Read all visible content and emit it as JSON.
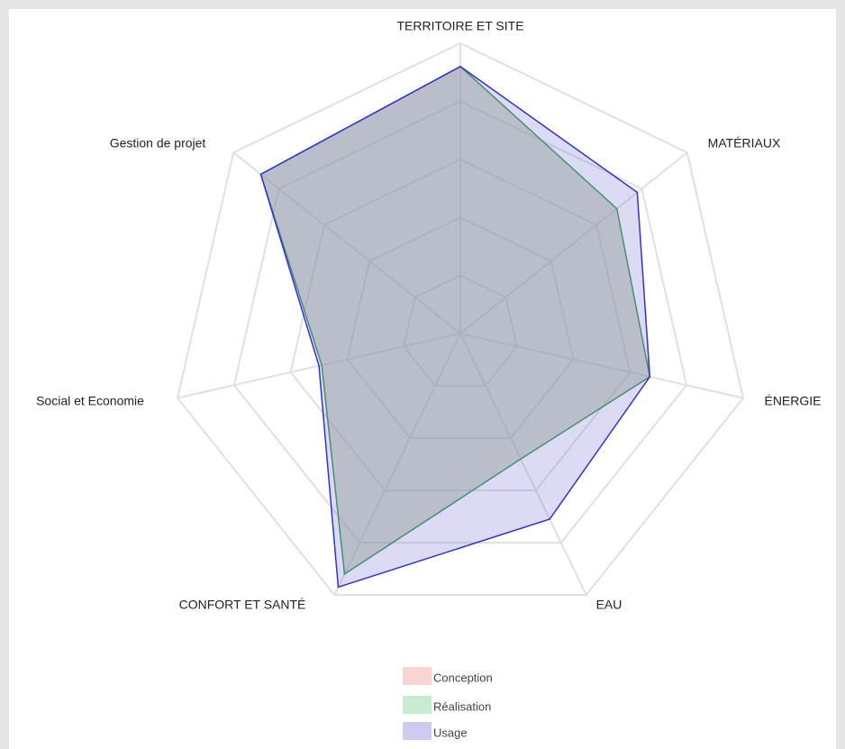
{
  "chart_data": {
    "type": "radar",
    "categories": [
      "TERRITOIRE ET SITE",
      "MATÉRIAUX",
      "ÉNERGIE",
      "EAU",
      "CONFORT ET SANTÉ",
      "Social et Economie",
      "Gestion de projet"
    ],
    "series": [
      {
        "name": "Conception",
        "color": "#f08080",
        "values": [
          92,
          69,
          67,
          48,
          92,
          49,
          88
        ]
      },
      {
        "name": "Réalisation",
        "color": "#3a9a4a",
        "values": [
          92,
          69,
          67,
          48,
          92,
          49,
          88
        ]
      },
      {
        "name": "Usage",
        "color": "#3333cc",
        "values": [
          92,
          78,
          67,
          71,
          97,
          50,
          88
        ]
      }
    ],
    "ylim": [
      0,
      100
    ],
    "yticks": [
      20,
      40,
      60,
      80,
      100
    ],
    "grid": true
  }
}
